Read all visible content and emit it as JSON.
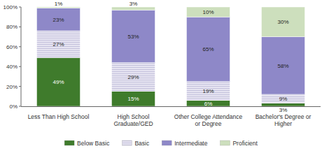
{
  "chart_data": {
    "type": "bar",
    "stacked": true,
    "data_labels": true,
    "grid": false,
    "legend": "bottom",
    "categories": [
      "Less Than High School",
      "High School Graduate/GED",
      "Other College Attendance or Degree",
      "Bachelor's Degree or Higher"
    ],
    "ylim": [
      0,
      100
    ],
    "yticks": [
      {
        "value": 0,
        "label": "0%"
      },
      {
        "value": 20,
        "label": "20%"
      },
      {
        "value": 40,
        "label": "40%"
      },
      {
        "value": 60,
        "label": "60%"
      },
      {
        "value": 80,
        "label": "80%"
      },
      {
        "value": 100,
        "label": "100%"
      }
    ],
    "series": [
      {
        "name": "Below Basic",
        "color": "#3f7b2c",
        "values": [
          49,
          15,
          6,
          3
        ],
        "value_labels": [
          "49%",
          "15%",
          "6%",
          "3%"
        ]
      },
      {
        "name": "Basic",
        "color": "#e6e4f1",
        "values": [
          27,
          29,
          19,
          9
        ],
        "value_labels": [
          "27%",
          "29%",
          "19%",
          "9%"
        ]
      },
      {
        "name": "Intermediate",
        "color": "#8e88c8",
        "values": [
          23,
          53,
          65,
          58
        ],
        "value_labels": [
          "23%",
          "53%",
          "65%",
          "58%"
        ]
      },
      {
        "name": "Proficient",
        "color": "#cddfbd",
        "values": [
          1,
          3,
          10,
          30
        ],
        "value_labels": [
          "1%",
          "3%",
          "10%",
          "30%"
        ]
      }
    ]
  }
}
